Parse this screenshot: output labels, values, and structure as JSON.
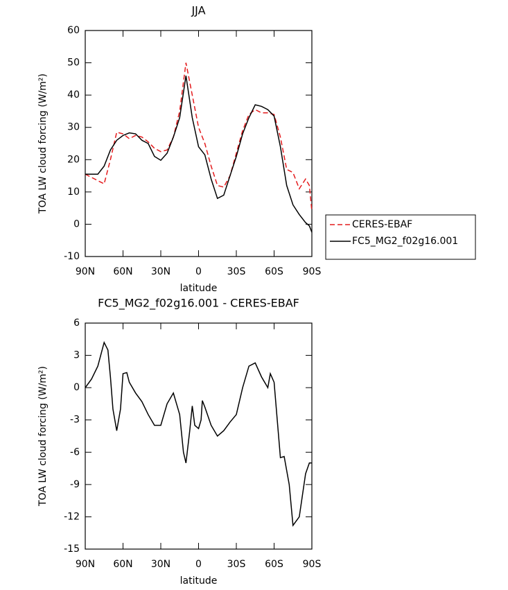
{
  "chart_data": [
    {
      "type": "line",
      "title": "JJA",
      "xlabel": "latitude",
      "ylabel": "TOA LW cloud forcing (W/m²)",
      "x": [
        90,
        85,
        80,
        75,
        70,
        65,
        60,
        55,
        50,
        45,
        40,
        35,
        30,
        25,
        20,
        15,
        10,
        5,
        0,
        -5,
        -10,
        -15,
        -20,
        -25,
        -30,
        -35,
        -40,
        -45,
        -50,
        -55,
        -60,
        -65,
        -70,
        -75,
        -80,
        -85,
        -88,
        -90
      ],
      "series": [
        {
          "name": "CERES-EBAF",
          "color": "#e41a1c",
          "linestyle": "dashed",
          "values": [
            15.5,
            14.5,
            13.5,
            12.5,
            20,
            28.5,
            28,
            26.5,
            27.5,
            27,
            25.5,
            23.5,
            22.5,
            23,
            27,
            35,
            50,
            40,
            30,
            25,
            18,
            12,
            11.5,
            15,
            22,
            29,
            34,
            35.5,
            34.5,
            34.5,
            34,
            27,
            17,
            16,
            11,
            14,
            12,
            4
          ]
        },
        {
          "name": "FC5_MG2_f02g16.001",
          "color": "#000000",
          "linestyle": "solid",
          "values": [
            15.5,
            15.5,
            15.5,
            18,
            23,
            26,
            27.5,
            28.3,
            28,
            26,
            25,
            21,
            19.8,
            22,
            27,
            33,
            46,
            33,
            24,
            21.5,
            14,
            8,
            9,
            15,
            21,
            28,
            33,
            37,
            36.5,
            35.5,
            33.5,
            24,
            12,
            6,
            3,
            0.5,
            -0.5,
            -2.5
          ]
        }
      ],
      "xlim": [
        90,
        -90
      ],
      "xticks": [
        {
          "value": 90,
          "label": "90N"
        },
        {
          "value": 60,
          "label": "60N"
        },
        {
          "value": 30,
          "label": "30N"
        },
        0,
        {
          "value": -30,
          "label": "30S"
        },
        {
          "value": -60,
          "label": "60S"
        },
        {
          "value": -90,
          "label": "90S"
        }
      ],
      "ylim": [
        -10,
        60
      ],
      "yticks": [
        -10,
        0,
        10,
        20,
        30,
        40,
        50,
        60
      ],
      "legend": "right"
    },
    {
      "type": "line",
      "title": "FC5_MG2_f02g16.001 - CERES-EBAF",
      "xlabel": "latitude",
      "ylabel": "TOA LW cloud forcing (W/m²)",
      "x": [
        90,
        85,
        80,
        75,
        72,
        70,
        68,
        65,
        62,
        60,
        57,
        55,
        50,
        45,
        40,
        35,
        30,
        25,
        20,
        15,
        12,
        10,
        7,
        5,
        3,
        0,
        -2,
        -3,
        -5,
        -10,
        -15,
        -20,
        -25,
        -30,
        -35,
        -40,
        -45,
        -50,
        -55,
        -57,
        -60,
        -65,
        -68,
        -72,
        -75,
        -80,
        -85,
        -88,
        -90
      ],
      "series": [
        {
          "color": "#000000",
          "linestyle": "solid",
          "values": [
            0,
            0.8,
            2,
            4.2,
            3.5,
            1,
            -2,
            -4,
            -2,
            1.3,
            1.4,
            0.5,
            -0.5,
            -1.3,
            -2.5,
            -3.5,
            -3.5,
            -1.5,
            -0.5,
            -2.5,
            -6,
            -7,
            -4,
            -1.7,
            -3.5,
            -3.8,
            -3,
            -1.2,
            -1.8,
            -3.5,
            -4.5,
            -4,
            -3.2,
            -2.5,
            0,
            2,
            2.3,
            1,
            0,
            1.3,
            0.5,
            -6.5,
            -6.4,
            -9,
            -12.8,
            -12,
            -8,
            -7,
            -7
          ]
        }
      ],
      "xlim": [
        90,
        -90
      ],
      "xticks": [
        {
          "value": 90,
          "label": "90N"
        },
        {
          "value": 60,
          "label": "60N"
        },
        {
          "value": 30,
          "label": "30N"
        },
        0,
        {
          "value": -30,
          "label": "30S"
        },
        {
          "value": -60,
          "label": "60S"
        },
        {
          "value": -90,
          "label": "90S"
        }
      ],
      "ylim": [
        -15,
        6
      ],
      "yticks": [
        -15,
        -12,
        -9,
        -6,
        -3,
        0,
        3,
        6
      ]
    }
  ]
}
